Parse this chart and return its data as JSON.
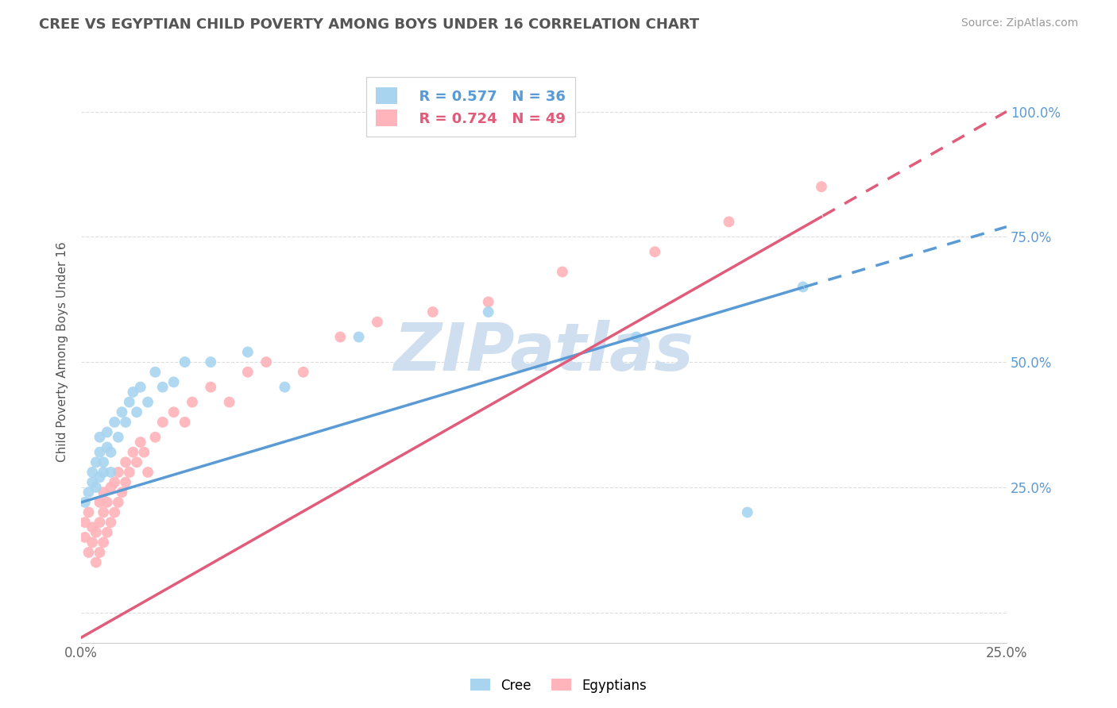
{
  "title": "CREE VS EGYPTIAN CHILD POVERTY AMONG BOYS UNDER 16 CORRELATION CHART",
  "source": "Source: ZipAtlas.com",
  "ylabel": "Child Poverty Among Boys Under 16",
  "xlim": [
    0.0,
    0.25
  ],
  "ylim": [
    -0.06,
    1.1
  ],
  "cree_color": "#a8d4f0",
  "egyptian_color": "#ffb3ba",
  "cree_line_color": "#5b9bd5",
  "egyptian_line_color": "#e05c7a",
  "watermark_text": "ZIPatlas",
  "watermark_color": "#d0dff0",
  "legend_r_cree": "R = 0.577",
  "legend_n_cree": "N = 36",
  "legend_r_egyptian": "R = 0.724",
  "legend_n_egyptian": "N = 49",
  "background_color": "#ffffff",
  "grid_color": "#dddddd",
  "title_color": "#555555",
  "source_color": "#999999",
  "ytick_color": "#5b9bd5",
  "xtick_color": "#666666",
  "cree_scatter_x": [
    0.001,
    0.002,
    0.003,
    0.003,
    0.004,
    0.004,
    0.005,
    0.005,
    0.005,
    0.006,
    0.006,
    0.007,
    0.007,
    0.008,
    0.008,
    0.009,
    0.01,
    0.011,
    0.012,
    0.013,
    0.014,
    0.015,
    0.016,
    0.018,
    0.02,
    0.022,
    0.025,
    0.028,
    0.035,
    0.045,
    0.055,
    0.075,
    0.11,
    0.15,
    0.18,
    0.195
  ],
  "cree_scatter_y": [
    0.22,
    0.24,
    0.26,
    0.28,
    0.25,
    0.3,
    0.27,
    0.32,
    0.35,
    0.28,
    0.3,
    0.33,
    0.36,
    0.28,
    0.32,
    0.38,
    0.35,
    0.4,
    0.38,
    0.42,
    0.44,
    0.4,
    0.45,
    0.42,
    0.48,
    0.45,
    0.46,
    0.5,
    0.5,
    0.52,
    0.45,
    0.55,
    0.6,
    0.55,
    0.2,
    0.65
  ],
  "egyptian_scatter_x": [
    0.001,
    0.001,
    0.002,
    0.002,
    0.003,
    0.003,
    0.004,
    0.004,
    0.005,
    0.005,
    0.005,
    0.006,
    0.006,
    0.006,
    0.007,
    0.007,
    0.008,
    0.008,
    0.009,
    0.009,
    0.01,
    0.01,
    0.011,
    0.012,
    0.012,
    0.013,
    0.014,
    0.015,
    0.016,
    0.017,
    0.018,
    0.02,
    0.022,
    0.025,
    0.028,
    0.03,
    0.035,
    0.04,
    0.045,
    0.05,
    0.06,
    0.07,
    0.08,
    0.095,
    0.11,
    0.13,
    0.155,
    0.175,
    0.2
  ],
  "egyptian_scatter_y": [
    0.18,
    0.15,
    0.12,
    0.2,
    0.14,
    0.17,
    0.1,
    0.16,
    0.12,
    0.18,
    0.22,
    0.14,
    0.2,
    0.24,
    0.16,
    0.22,
    0.18,
    0.25,
    0.2,
    0.26,
    0.22,
    0.28,
    0.24,
    0.26,
    0.3,
    0.28,
    0.32,
    0.3,
    0.34,
    0.32,
    0.28,
    0.35,
    0.38,
    0.4,
    0.38,
    0.42,
    0.45,
    0.42,
    0.48,
    0.5,
    0.48,
    0.55,
    0.58,
    0.6,
    0.62,
    0.68,
    0.72,
    0.78,
    0.85
  ],
  "cree_line_intercept": 0.22,
  "cree_line_slope": 2.2,
  "egyptian_line_intercept": -0.05,
  "egyptian_line_slope": 4.2
}
